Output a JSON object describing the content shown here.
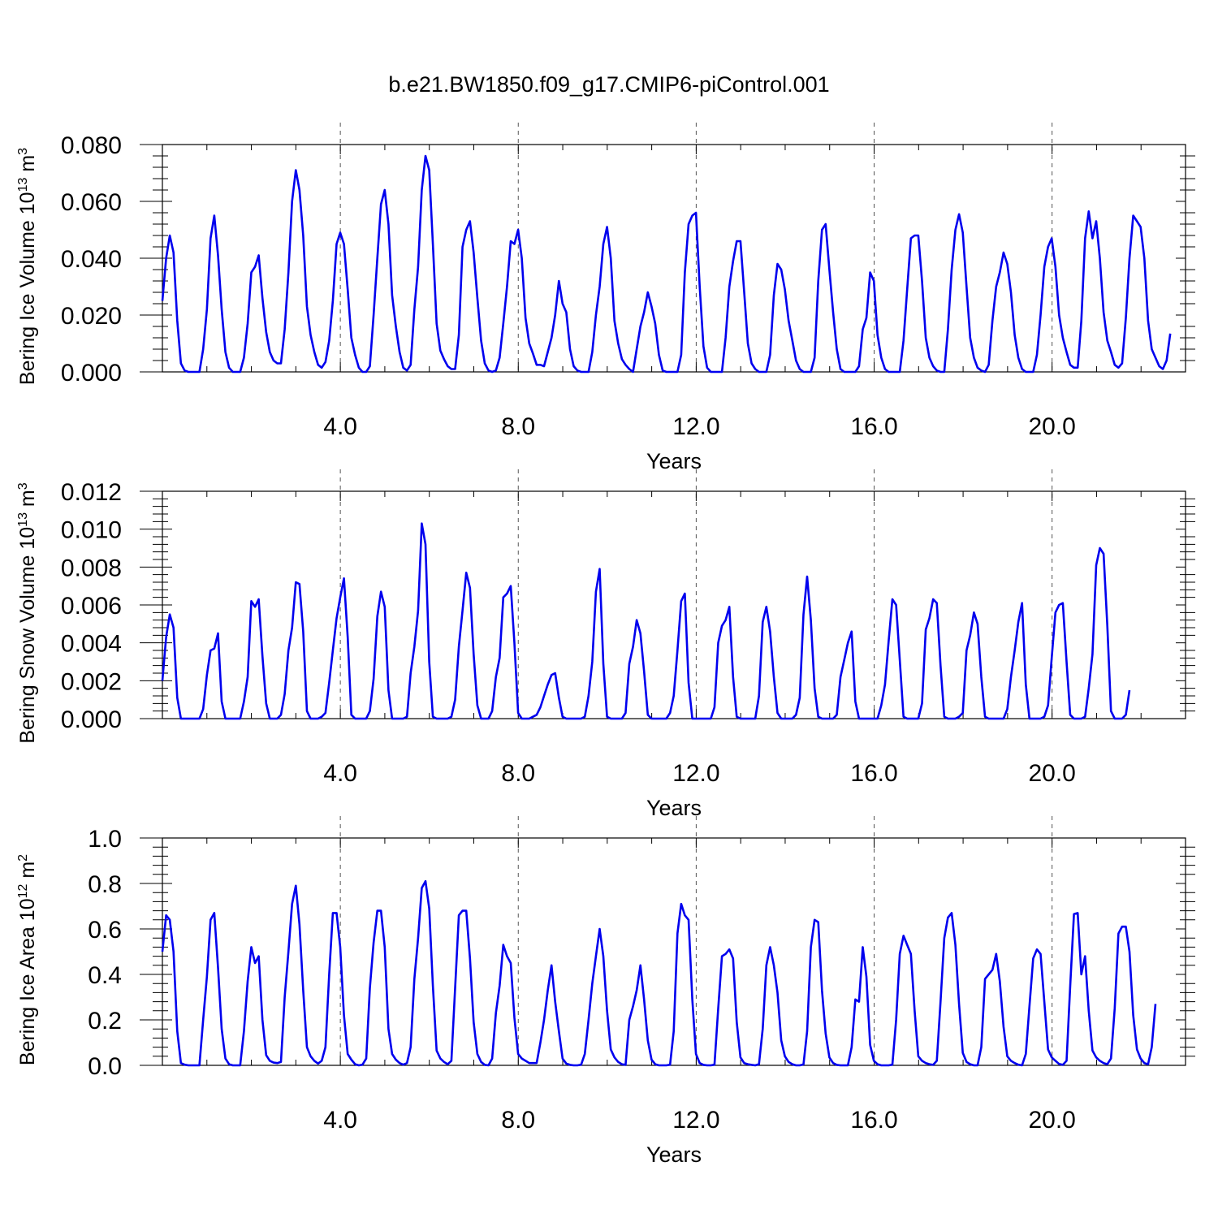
{
  "title": "b.e21.BW1850.f09_g17.CMIP6-piControl.001",
  "chart_data": [
    {
      "type": "line",
      "xlabel": "Years",
      "ylabel": "Bering Ice Volume 10",
      "ylabel_exp": "13",
      "ylabel_unit": " m",
      "ylabel_unit_exp": "3",
      "xlim": [
        0.0,
        23.0
      ],
      "ylim": [
        0.0,
        0.08
      ],
      "xticks": [
        "4.0",
        "8.0",
        "12.0",
        "16.0",
        "20.0"
      ],
      "yticks": [
        "0.000",
        "0.020",
        "0.040",
        "0.060",
        "0.080"
      ],
      "grid": "vertical-dashed",
      "line_color": "#0000ee",
      "x_step": 0.0833,
      "values": [
        0.025,
        0.04,
        0.048,
        0.042,
        0.018,
        0.003,
        0.0005,
        0.0,
        0.0,
        0.0,
        0.0,
        0.008,
        0.022,
        0.047,
        0.055,
        0.041,
        0.022,
        0.007,
        0.0015,
        0.0,
        0.0,
        0.0,
        0.005,
        0.017,
        0.035,
        0.037,
        0.041,
        0.026,
        0.014,
        0.007,
        0.004,
        0.003,
        0.003,
        0.015,
        0.035,
        0.06,
        0.071,
        0.064,
        0.048,
        0.023,
        0.013,
        0.007,
        0.0025,
        0.0015,
        0.0035,
        0.011,
        0.025,
        0.045,
        0.049,
        0.045,
        0.029,
        0.012,
        0.006,
        0.0015,
        0.0,
        0.0,
        0.002,
        0.02,
        0.04,
        0.059,
        0.064,
        0.052,
        0.027,
        0.016,
        0.007,
        0.0015,
        0.0005,
        0.0025,
        0.022,
        0.037,
        0.064,
        0.076,
        0.071,
        0.045,
        0.017,
        0.0075,
        0.0045,
        0.002,
        0.001,
        0.001,
        0.013,
        0.044,
        0.05,
        0.053,
        0.042,
        0.026,
        0.011,
        0.003,
        0.0005,
        0.0,
        0.0005,
        0.005,
        0.017,
        0.03,
        0.046,
        0.045,
        0.05,
        0.04,
        0.019,
        0.01,
        0.0065,
        0.0025,
        0.0025,
        0.002,
        0.007,
        0.012,
        0.02,
        0.032,
        0.024,
        0.021,
        0.008,
        0.002,
        0.0005,
        0.0,
        0.0,
        0.0,
        0.007,
        0.02,
        0.03,
        0.045,
        0.051,
        0.04,
        0.018,
        0.01,
        0.0045,
        0.0025,
        0.001,
        0.0,
        0.008,
        0.016,
        0.021,
        0.028,
        0.023,
        0.017,
        0.006,
        0.0005,
        0.0,
        0.0,
        0.0,
        0.0,
        0.006,
        0.035,
        0.052,
        0.055,
        0.056,
        0.03,
        0.009,
        0.0015,
        0.0,
        0.0,
        0.0,
        0.0,
        0.012,
        0.03,
        0.039,
        0.046,
        0.046,
        0.028,
        0.01,
        0.003,
        0.001,
        0.0,
        0.0,
        0.0,
        0.006,
        0.027,
        0.038,
        0.036,
        0.029,
        0.018,
        0.011,
        0.004,
        0.001,
        0.0,
        0.0,
        0.0,
        0.005,
        0.032,
        0.05,
        0.052,
        0.036,
        0.021,
        0.008,
        0.001,
        0.0,
        0.0,
        0.0,
        0.0,
        0.002,
        0.015,
        0.019,
        0.035,
        0.032,
        0.013,
        0.005,
        0.001,
        0.0,
        0.0,
        0.0,
        0.0,
        0.011,
        0.029,
        0.047,
        0.048,
        0.048,
        0.032,
        0.012,
        0.005,
        0.002,
        0.0005,
        0.0,
        0.0,
        0.015,
        0.036,
        0.05,
        0.0555,
        0.049,
        0.03,
        0.012,
        0.005,
        0.0015,
        0.0005,
        0.0,
        0.0025,
        0.018,
        0.03,
        0.035,
        0.042,
        0.038,
        0.028,
        0.013,
        0.005,
        0.001,
        0.0,
        0.0,
        0.0,
        0.006,
        0.02,
        0.037,
        0.044,
        0.047,
        0.037,
        0.02,
        0.012,
        0.007,
        0.0025,
        0.0015,
        0.0015,
        0.018,
        0.047,
        0.0565,
        0.047,
        0.053,
        0.04,
        0.021,
        0.011,
        0.007,
        0.0025,
        0.0015,
        0.003,
        0.019,
        0.04,
        0.055,
        0.053,
        0.051,
        0.04,
        0.018,
        0.008,
        0.005,
        0.002,
        0.001,
        0.004,
        0.0135
      ]
    },
    {
      "type": "line",
      "xlabel": "Years",
      "ylabel": "Bering Snow Volume 10",
      "ylabel_exp": "13",
      "ylabel_unit": " m",
      "ylabel_unit_exp": "3",
      "xlim": [
        0.0,
        23.0
      ],
      "ylim": [
        0.0,
        0.012
      ],
      "xticks": [
        "4.0",
        "8.0",
        "12.0",
        "16.0",
        "20.0"
      ],
      "yticks": [
        "0.000",
        "0.002",
        "0.004",
        "0.006",
        "0.008",
        "0.010",
        "0.012"
      ],
      "grid": "vertical-dashed",
      "line_color": "#0000ee",
      "x_step": 0.0833,
      "values": [
        0.002,
        0.0043,
        0.0055,
        0.0048,
        0.0011,
        0.0,
        0.0,
        0.0,
        0.0,
        0.0,
        0.0,
        0.0005,
        0.0023,
        0.0036,
        0.0037,
        0.0045,
        0.0009,
        0.0,
        0.0,
        0.0,
        0.0,
        0.0,
        0.0009,
        0.0022,
        0.0062,
        0.0059,
        0.0063,
        0.0033,
        0.0008,
        0.0,
        0.0,
        0.0,
        0.0002,
        0.0013,
        0.0036,
        0.0048,
        0.0072,
        0.0071,
        0.0046,
        0.0004,
        0.0,
        0.0,
        0.0,
        0.0001,
        0.0003,
        0.0019,
        0.0036,
        0.0053,
        0.0064,
        0.0074,
        0.0043,
        0.0002,
        0.0,
        0.0,
        0.0,
        0.0,
        0.0004,
        0.0021,
        0.0054,
        0.0067,
        0.0059,
        0.0015,
        0.0,
        0.0,
        0.0,
        0.0,
        0.0001,
        0.0024,
        0.0038,
        0.0057,
        0.0103,
        0.0092,
        0.003,
        0.0001,
        0.0,
        0.0,
        0.0,
        0.0,
        0.0001,
        0.001,
        0.0038,
        0.0057,
        0.0077,
        0.0069,
        0.0034,
        0.0007,
        0.0,
        0.0,
        0.0,
        0.0004,
        0.0022,
        0.0032,
        0.0064,
        0.0066,
        0.007,
        0.004,
        0.0003,
        0.0,
        0.0,
        0.0,
        0.0001,
        0.0002,
        0.0006,
        0.0012,
        0.0018,
        0.0023,
        0.0024,
        0.0011,
        0.0001,
        0.0,
        0.0,
        0.0,
        0.0,
        0.0,
        0.0001,
        0.0012,
        0.003,
        0.0067,
        0.0079,
        0.0029,
        0.0001,
        0.0,
        0.0,
        0.0,
        0.0,
        0.0003,
        0.0029,
        0.0038,
        0.0052,
        0.0045,
        0.0025,
        0.0002,
        0.0,
        0.0,
        0.0,
        0.0,
        0.0,
        0.0003,
        0.0012,
        0.0036,
        0.0062,
        0.0066,
        0.0019,
        0.0,
        0.0,
        0.0,
        0.0,
        0.0,
        0.0,
        0.0006,
        0.004,
        0.0049,
        0.0052,
        0.0059,
        0.0022,
        0.0001,
        0.0,
        0.0,
        0.0,
        0.0,
        0.0,
        0.0012,
        0.0051,
        0.0059,
        0.0046,
        0.0022,
        0.0003,
        0.0,
        0.0,
        0.0,
        0.0,
        0.0002,
        0.0011,
        0.0055,
        0.0075,
        0.0052,
        0.0016,
        0.0001,
        0.0,
        0.0,
        0.0,
        0.0,
        0.0002,
        0.0022,
        0.0031,
        0.004,
        0.0046,
        0.0009,
        0.0,
        0.0,
        0.0,
        0.0,
        0.0,
        0.0,
        0.0007,
        0.0018,
        0.0041,
        0.0063,
        0.006,
        0.0031,
        0.0001,
        0.0,
        0.0,
        0.0,
        0.0,
        0.0008,
        0.0047,
        0.0053,
        0.0063,
        0.0061,
        0.0028,
        0.0001,
        0.0,
        0.0,
        0.0,
        0.0001,
        0.0003,
        0.0036,
        0.0044,
        0.0056,
        0.005,
        0.0022,
        0.0001,
        0.0,
        0.0,
        0.0,
        0.0,
        0.0,
        0.0005,
        0.0022,
        0.0036,
        0.0051,
        0.0061,
        0.0018,
        0.0,
        0.0,
        0.0,
        0.0,
        0.0001,
        0.0007,
        0.0032,
        0.0056,
        0.006,
        0.0061,
        0.003,
        0.0002,
        0.0,
        0.0,
        0.0,
        0.0001,
        0.0016,
        0.0034,
        0.0081,
        0.009,
        0.0087,
        0.0049,
        0.0004,
        0.0,
        0.0,
        0.0,
        0.0002,
        0.0015
      ]
    },
    {
      "type": "line",
      "xlabel": "Years",
      "ylabel": "Bering Ice Area 10",
      "ylabel_exp": "12",
      "ylabel_unit": " m",
      "ylabel_unit_exp": "2",
      "xlim": [
        0.0,
        23.0
      ],
      "ylim": [
        0.0,
        1.0
      ],
      "xticks": [
        "4.0",
        "8.0",
        "12.0",
        "16.0",
        "20.0"
      ],
      "yticks": [
        "0.0",
        "0.2",
        "0.4",
        "0.6",
        "0.8",
        "1.0"
      ],
      "grid": "vertical-dashed",
      "line_color": "#0000ee",
      "x_step": 0.0833,
      "values": [
        0.5,
        0.66,
        0.64,
        0.5,
        0.15,
        0.01,
        0.003,
        0.0,
        0.0,
        0.0,
        0.0,
        0.2,
        0.39,
        0.64,
        0.67,
        0.43,
        0.16,
        0.03,
        0.005,
        0.0,
        0.0,
        0.0,
        0.15,
        0.37,
        0.52,
        0.45,
        0.48,
        0.2,
        0.045,
        0.02,
        0.012,
        0.01,
        0.015,
        0.3,
        0.5,
        0.71,
        0.79,
        0.62,
        0.33,
        0.08,
        0.04,
        0.02,
        0.008,
        0.02,
        0.08,
        0.4,
        0.67,
        0.67,
        0.52,
        0.22,
        0.05,
        0.025,
        0.005,
        0.0,
        0.003,
        0.03,
        0.34,
        0.54,
        0.68,
        0.68,
        0.52,
        0.16,
        0.05,
        0.025,
        0.01,
        0.003,
        0.01,
        0.08,
        0.38,
        0.56,
        0.78,
        0.81,
        0.69,
        0.35,
        0.065,
        0.03,
        0.015,
        0.005,
        0.02,
        0.34,
        0.66,
        0.68,
        0.68,
        0.47,
        0.19,
        0.05,
        0.015,
        0.002,
        0.0,
        0.03,
        0.23,
        0.35,
        0.53,
        0.48,
        0.45,
        0.21,
        0.05,
        0.03,
        0.02,
        0.01,
        0.01,
        0.01,
        0.1,
        0.2,
        0.33,
        0.44,
        0.28,
        0.15,
        0.03,
        0.008,
        0.002,
        0.0,
        0.0,
        0.003,
        0.05,
        0.2,
        0.36,
        0.48,
        0.6,
        0.48,
        0.24,
        0.07,
        0.035,
        0.015,
        0.005,
        0.002,
        0.2,
        0.26,
        0.33,
        0.44,
        0.29,
        0.11,
        0.025,
        0.005,
        0.0,
        0.0,
        0.0,
        0.003,
        0.15,
        0.58,
        0.71,
        0.66,
        0.64,
        0.29,
        0.05,
        0.01,
        0.002,
        0.0,
        0.0,
        0.003,
        0.25,
        0.48,
        0.49,
        0.51,
        0.47,
        0.19,
        0.035,
        0.01,
        0.005,
        0.002,
        0.0,
        0.005,
        0.16,
        0.44,
        0.52,
        0.44,
        0.32,
        0.11,
        0.04,
        0.015,
        0.005,
        0.0,
        0.0,
        0.004,
        0.15,
        0.52,
        0.64,
        0.63,
        0.33,
        0.14,
        0.035,
        0.01,
        0.002,
        0.0,
        0.0,
        0.0,
        0.08,
        0.29,
        0.28,
        0.52,
        0.39,
        0.09,
        0.02,
        0.005,
        0.0,
        0.0,
        0.0,
        0.003,
        0.2,
        0.49,
        0.57,
        0.53,
        0.49,
        0.24,
        0.04,
        0.02,
        0.01,
        0.005,
        0.002,
        0.02,
        0.28,
        0.56,
        0.65,
        0.67,
        0.53,
        0.27,
        0.055,
        0.015,
        0.005,
        0.0,
        0.0,
        0.08,
        0.38,
        0.4,
        0.42,
        0.49,
        0.37,
        0.17,
        0.04,
        0.02,
        0.01,
        0.003,
        0.0,
        0.05,
        0.26,
        0.47,
        0.51,
        0.49,
        0.28,
        0.07,
        0.035,
        0.02,
        0.006,
        0.002,
        0.02,
        0.35,
        0.665,
        0.67,
        0.4,
        0.48,
        0.24,
        0.065,
        0.035,
        0.02,
        0.01,
        0.005,
        0.03,
        0.25,
        0.58,
        0.61,
        0.61,
        0.5,
        0.22,
        0.07,
        0.03,
        0.01,
        0.005,
        0.08,
        0.27
      ]
    }
  ]
}
